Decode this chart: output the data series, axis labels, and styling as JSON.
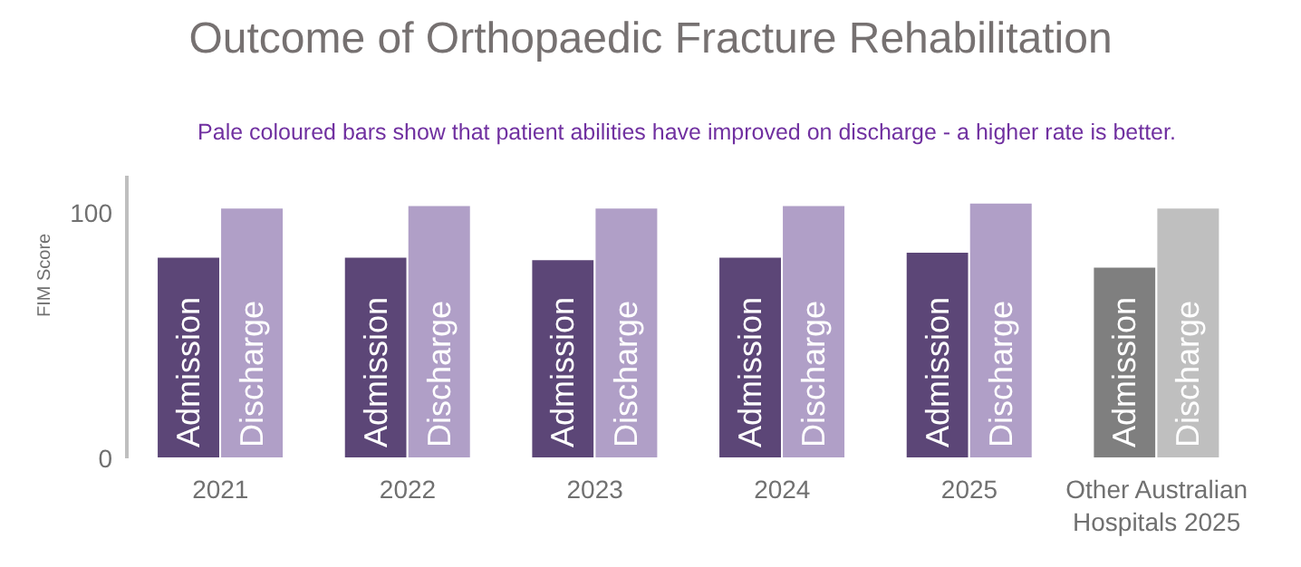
{
  "chart_data": {
    "type": "bar",
    "title": "Outcome of Orthopaedic Fracture Rehabilitation",
    "annotations": [
      "Pale coloured bars show that patient abilities have improved on discharge - a higher rate is better."
    ],
    "ylabel": "FIM Score",
    "categories": [
      "2021",
      "2022",
      "2023",
      "2024",
      "2025",
      "Other Australian Hospitals 2025"
    ],
    "series": [
      {
        "name": "Admission",
        "colors": [
          "#5c4677",
          "#5c4677",
          "#5c4677",
          "#5c4677",
          "#5c4677",
          "#7f7f7f"
        ],
        "values": [
          82,
          82,
          81,
          82,
          84,
          78
        ]
      },
      {
        "name": "Discharge",
        "colors": [
          "#b09fc7",
          "#b09fc7",
          "#b09fc7",
          "#b09fc7",
          "#b09fc7",
          "#bfbfbf"
        ],
        "values": [
          102,
          103,
          102,
          103,
          104,
          102
        ]
      }
    ],
    "ylim": [
      0,
      115
    ],
    "yticks": [
      0,
      100
    ],
    "grid": false,
    "legend": false
  }
}
